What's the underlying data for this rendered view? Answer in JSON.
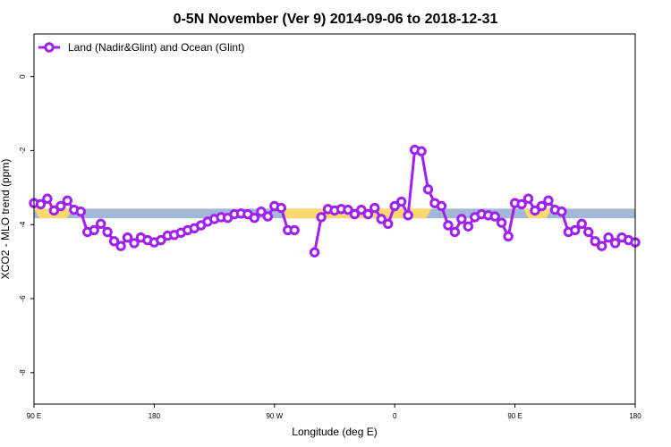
{
  "chart_data": {
    "type": "line",
    "title": "0-5N November (Ver 9)   2014-09-06 to 2018-12-31",
    "xlabel": "Longitude (deg E)",
    "ylabel": "XCO2 - MLO trend (ppm)",
    "xlim": [
      90,
      450
    ],
    "ylim": [
      -8.85,
      1.15
    ],
    "x_ticks": [
      {
        "value": 90,
        "label": "90 E"
      },
      {
        "value": 162,
        "label": "180"
      },
      {
        "value": 234,
        "label": "90 W"
      },
      {
        "value": 306,
        "label": "0"
      },
      {
        "value": 378,
        "label": "90 E"
      },
      {
        "value": 450,
        "label": "180"
      }
    ],
    "y_ticks": [
      0,
      -2,
      -4,
      -6,
      -8
    ],
    "legend": {
      "position": "top-left"
    },
    "colors": {
      "series": "#a020f0",
      "band_blue": "#a2b8d6",
      "band_yellow": "#fbd870"
    },
    "band": {
      "y_center": -3.7,
      "y_half_height": 0.13,
      "yellow_segments": [
        [
          90,
          113
        ],
        [
          237,
          328
        ],
        [
          383,
          400
        ]
      ]
    },
    "series": [
      {
        "name": "Land (Nadir&Glint) and Ocean (Glint)",
        "x": [
          90,
          94,
          98,
          102,
          106,
          110,
          114,
          118,
          122,
          126,
          130,
          134,
          138,
          142,
          146,
          150,
          154,
          158,
          162,
          166,
          170,
          174,
          178,
          182,
          186,
          190,
          194,
          198,
          202,
          206,
          210,
          214,
          218,
          222,
          226,
          230,
          234,
          238,
          242,
          246,
          250,
          null,
          258,
          262,
          266,
          270,
          274,
          278,
          282,
          286,
          290,
          294,
          298,
          302,
          306,
          310,
          314,
          318,
          322,
          326,
          330,
          334,
          338,
          342,
          346,
          350,
          354,
          358,
          362,
          366,
          370,
          374,
          378,
          382,
          386,
          390,
          394,
          398,
          402,
          406,
          410,
          414,
          418,
          422,
          426,
          430,
          434,
          438,
          442,
          446,
          450
        ],
        "values": [
          -3.42,
          -3.45,
          -3.3,
          -3.62,
          -3.5,
          -3.35,
          -3.6,
          -3.65,
          -4.2,
          -4.15,
          -3.98,
          -4.2,
          -4.45,
          -4.58,
          -4.35,
          -4.5,
          -4.35,
          -4.42,
          -4.48,
          -4.42,
          -4.3,
          -4.28,
          -4.22,
          -4.15,
          -4.1,
          -4.02,
          -3.92,
          -3.85,
          -3.8,
          -3.82,
          -3.72,
          -3.7,
          -3.72,
          -3.82,
          -3.65,
          -3.78,
          -3.5,
          -3.55,
          -4.15,
          -4.15,
          null,
          -3.8,
          -4.75,
          -3.8,
          -3.58,
          -3.62,
          -3.58,
          -3.6,
          -3.72,
          -3.6,
          -3.72,
          -3.55,
          -3.85,
          -3.98,
          -3.5,
          -3.38,
          -3.75,
          -1.98,
          -2.02,
          -3.05,
          -3.42,
          -3.5,
          -4.02,
          -4.2,
          -3.85,
          -4.05,
          -3.8,
          -3.72,
          -3.75,
          -3.78,
          -3.95,
          -4.32,
          -3.42,
          -3.45,
          -3.3,
          -3.62,
          -3.5,
          -3.35,
          -3.6,
          -3.65,
          -4.2,
          -4.15,
          -3.98,
          -4.2,
          -4.45,
          -4.58,
          -4.35,
          -4.5,
          -4.35,
          -4.42,
          -4.48
        ]
      }
    ]
  }
}
